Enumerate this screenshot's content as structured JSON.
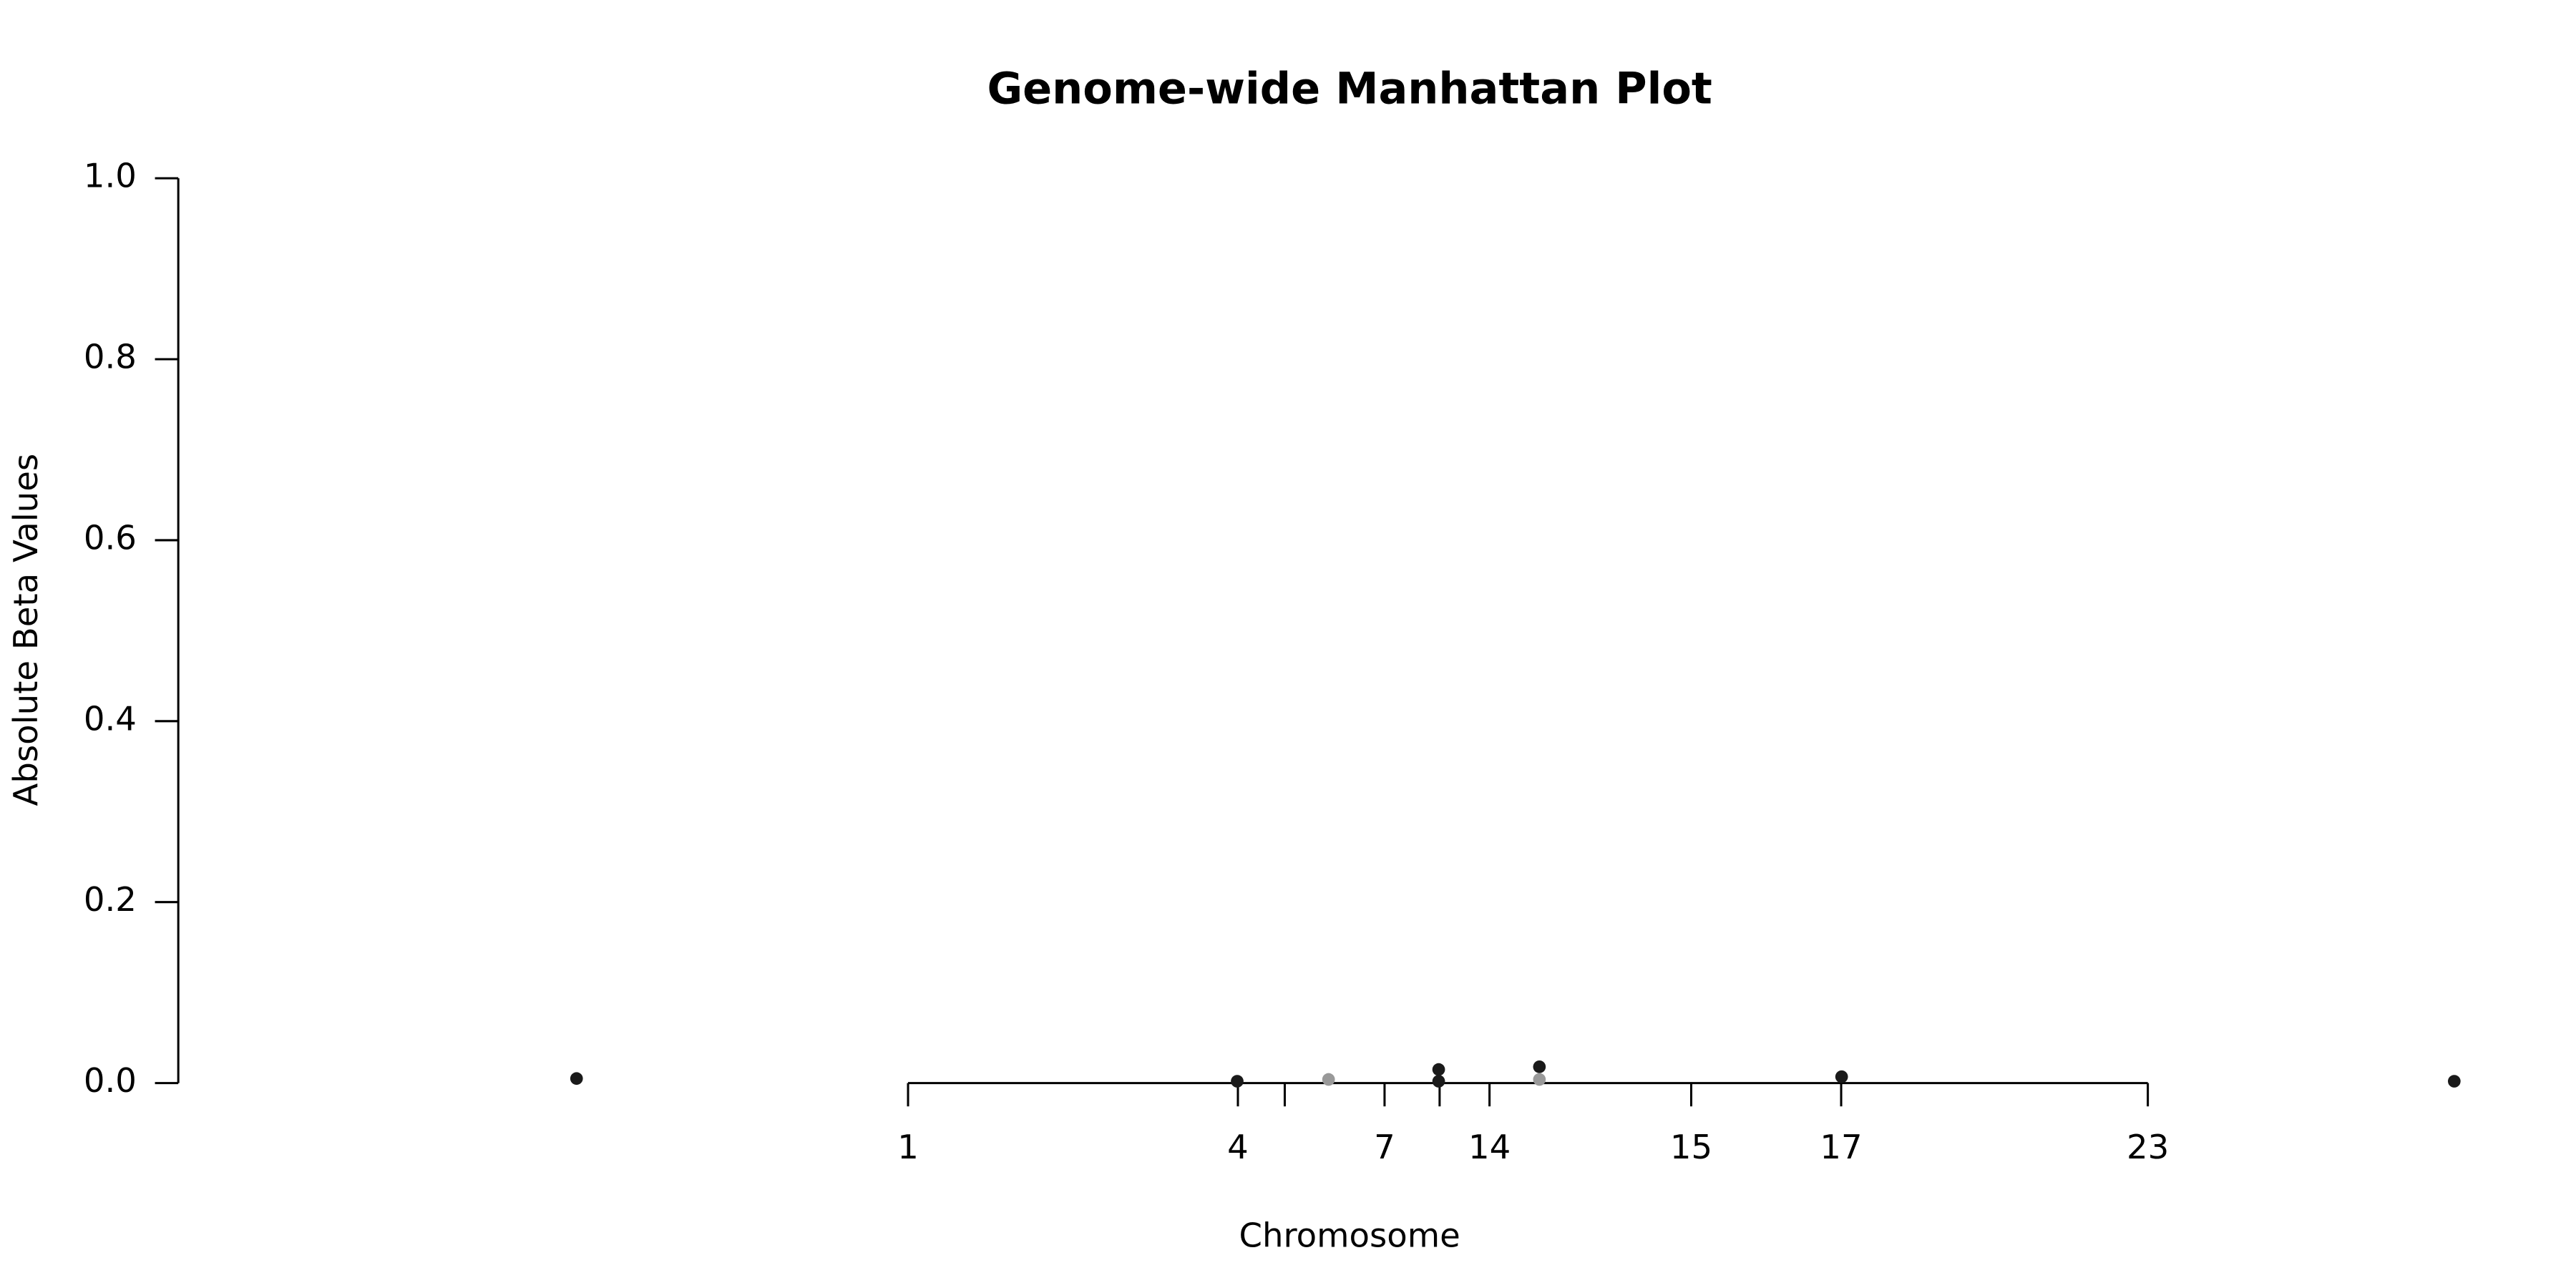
{
  "chart_data": {
    "type": "scatter",
    "title": "Genome-wide Manhattan Plot",
    "x_label": "Chromosome",
    "y_label": "Absolute Beta Values",
    "x": [
      170,
      452,
      491,
      538,
      538,
      581,
      581,
      710,
      971.5
    ],
    "values": [
      0.005,
      0.002,
      0.004,
      0.015,
      0.002,
      0.018,
      0.004,
      0.007,
      0.002
    ],
    "colors": [
      "#1a1a1a",
      "#1a1a1a",
      "#999999",
      "#1a1a1a",
      "#1a1a1a",
      "#1a1a1a",
      "#999999",
      "#1a1a1a",
      "#1a1a1a"
    ],
    "xlim": [
      0,
      1000
    ],
    "ylim": [
      0,
      1.0
    ],
    "xticks": [
      {
        "value": 311.5,
        "label": "1"
      },
      {
        "value": 452.3,
        "label": "4"
      },
      {
        "value": 472.3,
        "label": null
      },
      {
        "value": 514.9,
        "label": "7"
      },
      {
        "value": 538.4,
        "label": null
      },
      {
        "value": 559.7,
        "label": "14"
      },
      {
        "value": 645.8,
        "label": "15"
      },
      {
        "value": 709.8,
        "label": "17"
      },
      {
        "value": 840.7,
        "label": "23"
      }
    ],
    "yticks": [
      {
        "value": 0,
        "label": "0.0"
      },
      {
        "value": 0.2,
        "label": "0.2"
      },
      {
        "value": 0.4,
        "label": "0.4"
      },
      {
        "value": 0.6,
        "label": "0.6"
      },
      {
        "value": 0.8,
        "label": "0.8"
      },
      {
        "value": 1.0,
        "label": "1.0"
      }
    ],
    "grid": false
  }
}
